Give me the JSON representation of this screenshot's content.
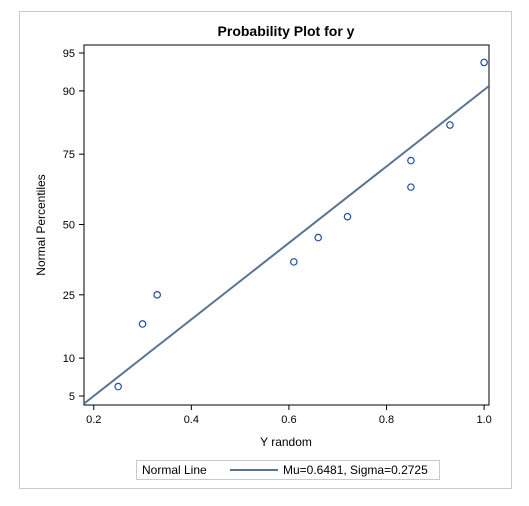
{
  "chart_data": {
    "type": "scatter",
    "title": "Probability Plot for y",
    "xlabel": "Y random",
    "ylabel": "Normal Percentiles",
    "xlim": [
      0.18,
      1.01
    ],
    "x_ticks": [
      "0.2",
      "0.4",
      "0.6",
      "0.8",
      "1.0"
    ],
    "x_tick_values": [
      0.2,
      0.4,
      0.6,
      0.8,
      1.0
    ],
    "y_ticks": [
      "5",
      "10",
      "25",
      "50",
      "75",
      "90",
      "95"
    ],
    "y_tick_values": [
      5,
      10,
      25,
      50,
      75,
      90,
      95
    ],
    "y_scale": "normal-probability",
    "grid": false,
    "legend_position": "bottom",
    "points": [
      {
        "x": 0.25,
        "y": 6
      },
      {
        "x": 0.3,
        "y": 17
      },
      {
        "x": 0.33,
        "y": 25
      },
      {
        "x": 0.61,
        "y": 36
      },
      {
        "x": 0.66,
        "y": 45
      },
      {
        "x": 0.72,
        "y": 53
      },
      {
        "x": 0.85,
        "y": 64
      },
      {
        "x": 0.85,
        "y": 73
      },
      {
        "x": 0.93,
        "y": 83
      },
      {
        "x": 1.0,
        "y": 94
      }
    ],
    "fit_line": {
      "mu": 0.6481,
      "sigma": 0.2725
    },
    "legend": {
      "title": "Normal Line",
      "entry": "Mu=0.6481, Sigma=0.2725"
    },
    "colors": {
      "line": "#5b7491",
      "marker": "#1f4e9c",
      "axis": "#000000"
    }
  }
}
